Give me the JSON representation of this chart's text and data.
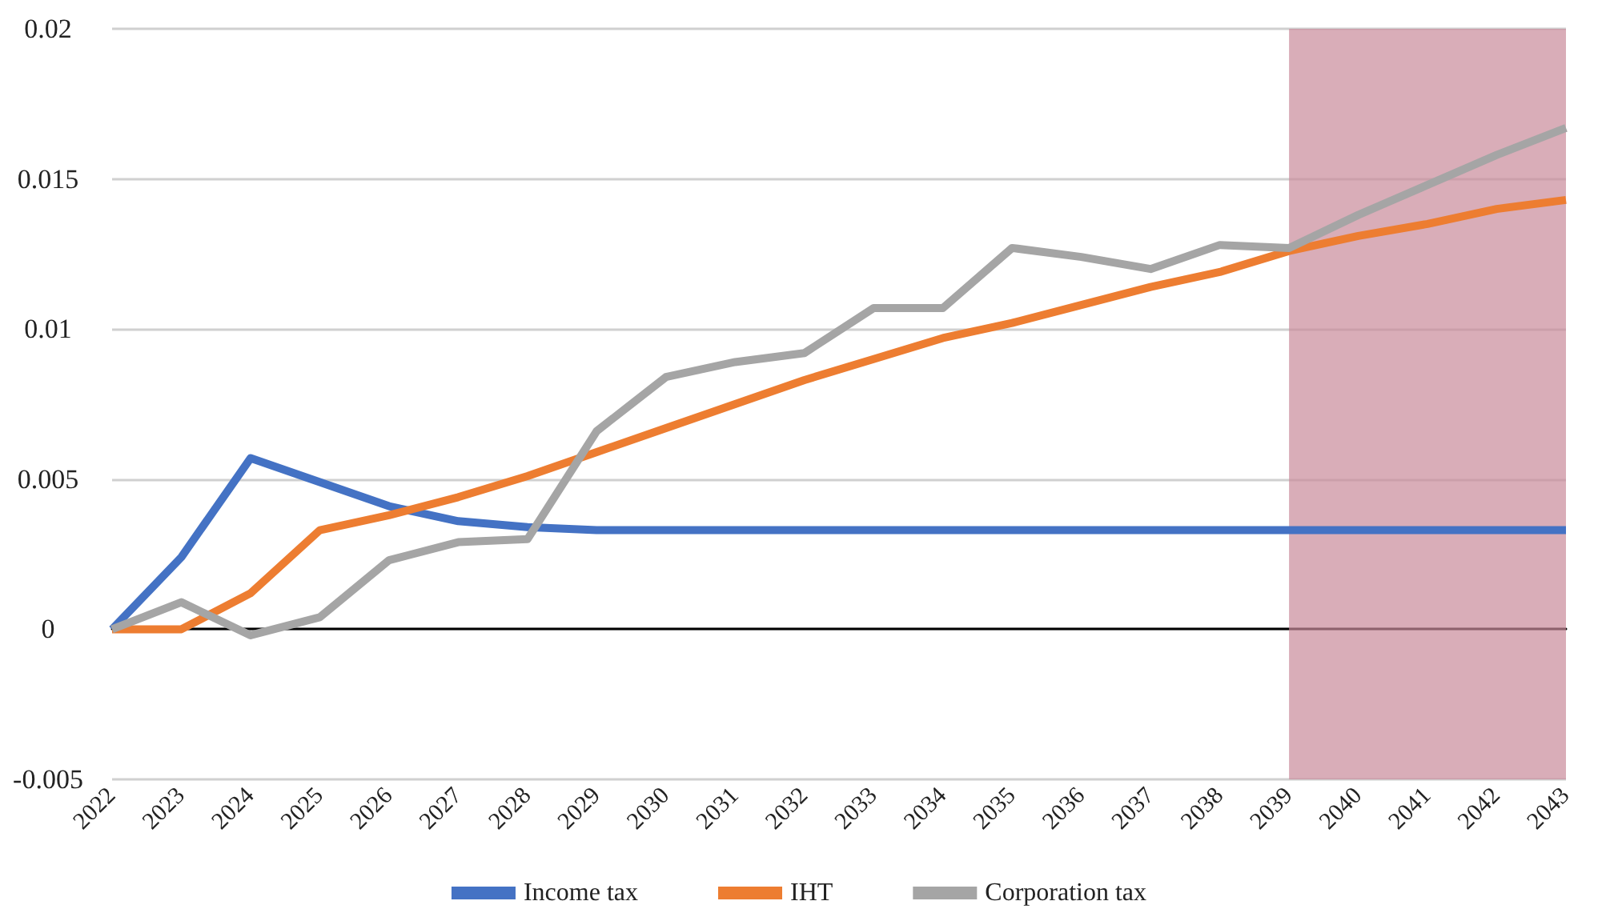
{
  "chart_data": {
    "type": "line",
    "categories": [
      "2022",
      "2023",
      "2024",
      "2025",
      "2026",
      "2027",
      "2028",
      "2029",
      "2030",
      "2031",
      "2032",
      "2033",
      "2034",
      "2035",
      "2036",
      "2037",
      "2038",
      "2039",
      "2040",
      "2041",
      "2042",
      "2043"
    ],
    "series": [
      {
        "name": "Income tax",
        "color": "#4472c4",
        "values": [
          0,
          0.0024,
          0.0057,
          0.0049,
          0.0041,
          0.0036,
          0.0034,
          0.0033,
          0.0033,
          0.0033,
          0.0033,
          0.0033,
          0.0033,
          0.0033,
          0.0033,
          0.0033,
          0.0033,
          0.0033,
          0.0033,
          0.0033,
          0.0033,
          0.0033
        ]
      },
      {
        "name": "IHT",
        "color": "#ed7d31",
        "values": [
          0,
          0,
          0.0012,
          0.0033,
          0.0038,
          0.0044,
          0.0051,
          0.0059,
          0.0067,
          0.0075,
          0.0083,
          0.009,
          0.0097,
          0.0102,
          0.0108,
          0.0114,
          0.0119,
          0.0126,
          0.0131,
          0.0135,
          0.014,
          0.0143
        ]
      },
      {
        "name": "Corporation tax",
        "color": "#a5a5a5",
        "values": [
          0,
          0.0009,
          -0.0002,
          0.0004,
          0.0023,
          0.0029,
          0.003,
          0.0066,
          0.0084,
          0.0089,
          0.0092,
          0.0107,
          0.0107,
          0.0127,
          0.0124,
          0.012,
          0.0128,
          0.0127,
          0.0138,
          0.0148,
          0.0158,
          0.0167
        ]
      }
    ],
    "ylim": [
      -0.005,
      0.02
    ],
    "yticks": [
      -0.005,
      0,
      0.005,
      0.01,
      0.015,
      0.02
    ],
    "bands": [
      {
        "axis": "x",
        "from": "2039",
        "to": "2043",
        "color": "#c98a9a"
      }
    ],
    "grid": "y",
    "legend": "bottom",
    "marker": "none",
    "line_style": "solid"
  }
}
